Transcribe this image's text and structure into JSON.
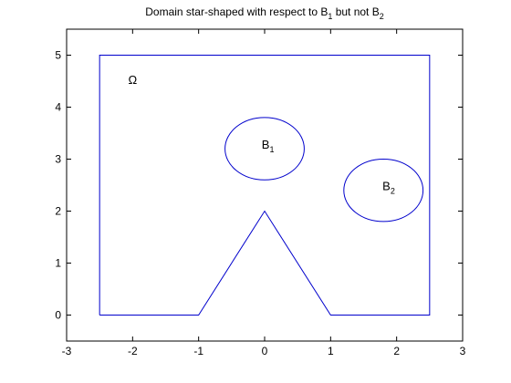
{
  "chart_data": {
    "type": "line",
    "title": {
      "text": "Domain star-shaped with respect to B",
      "sub1": "1",
      "mid": " but not B",
      "sub2": "2"
    },
    "xlabel": "",
    "ylabel": "",
    "xlim": [
      -3,
      3
    ],
    "ylim": [
      -0.5,
      5.5
    ],
    "xticks": [
      -3,
      -2,
      -1,
      0,
      1,
      2,
      3
    ],
    "yticks": [
      0,
      1,
      2,
      3,
      4,
      5
    ],
    "xtick_labels": [
      "-3",
      "-2",
      "-1",
      "0",
      "1",
      "2",
      "3"
    ],
    "ytick_labels": [
      "0",
      "1",
      "2",
      "3",
      "4",
      "5"
    ],
    "grid": false,
    "line_color": "#0000cc",
    "domain_boundary": {
      "x": [
        -2.5,
        -1,
        0,
        1,
        2.5,
        2.5,
        -2.5,
        -2.5
      ],
      "y": [
        0,
        0,
        2,
        0,
        0,
        5,
        5,
        0
      ]
    },
    "ellipses": [
      {
        "label": "B",
        "sub": "1",
        "cx": 0,
        "cy": 3.2,
        "rx": 0.6,
        "ry": 0.6,
        "label_x": 0.05,
        "label_y": 3.2
      },
      {
        "label": "B",
        "sub": "2",
        "cx": 1.8,
        "cy": 2.4,
        "rx": 0.6,
        "ry": 0.6,
        "label_x": 1.88,
        "label_y": 2.4
      }
    ],
    "annotations": [
      {
        "text": "Ω",
        "x": -2.0,
        "y": 4.45
      }
    ]
  }
}
